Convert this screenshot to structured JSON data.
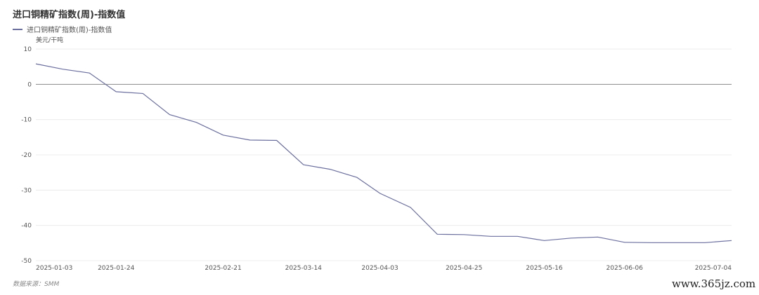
{
  "chart_data": {
    "type": "line",
    "title": "进口铜精矿指数(周)-指数值",
    "unit_label": "美元/干吨",
    "legend_position": "top-left",
    "grid": true,
    "ylim": [
      -50,
      10
    ],
    "y_ticks": [
      "10",
      "0",
      "-10",
      "-20",
      "-30",
      "-40",
      "-50"
    ],
    "x_tick_labels": [
      "2025-01-03",
      "2025-01-24",
      "2025-02-21",
      "2025-03-14",
      "2025-04-03",
      "2025-04-25",
      "2025-05-16",
      "2025-06-06",
      "2025-07-04"
    ],
    "series": [
      {
        "name": "进口铜精矿指数(周)-指数值",
        "color": "#6b6f9e",
        "x": [
          "2025-01-03",
          "2025-01-10",
          "2025-01-17",
          "2025-01-24",
          "2025-01-31",
          "2025-02-07",
          "2025-02-14",
          "2025-02-21",
          "2025-02-28",
          "2025-03-07",
          "2025-03-14",
          "2025-03-21",
          "2025-03-28",
          "2025-04-03",
          "2025-04-11",
          "2025-04-18",
          "2025-04-25",
          "2025-05-02",
          "2025-05-09",
          "2025-05-16",
          "2025-05-23",
          "2025-05-30",
          "2025-06-06",
          "2025-06-13",
          "2025-06-20",
          "2025-06-27",
          "2025-07-04"
        ],
        "values": [
          5.8,
          4.3,
          3.2,
          -2.1,
          -2.6,
          -8.6,
          -10.8,
          -14.4,
          -15.8,
          -15.9,
          -22.8,
          -24.1,
          -26.4,
          -30.9,
          -34.9,
          -42.5,
          -42.6,
          -43.1,
          -43.1,
          -44.3,
          -43.6,
          -43.3,
          -44.8,
          -44.9,
          -44.9,
          -44.9,
          -44.3
        ]
      }
    ]
  },
  "footer": {
    "source": "数据来源：SMM",
    "watermark": "www.365jz.com"
  }
}
